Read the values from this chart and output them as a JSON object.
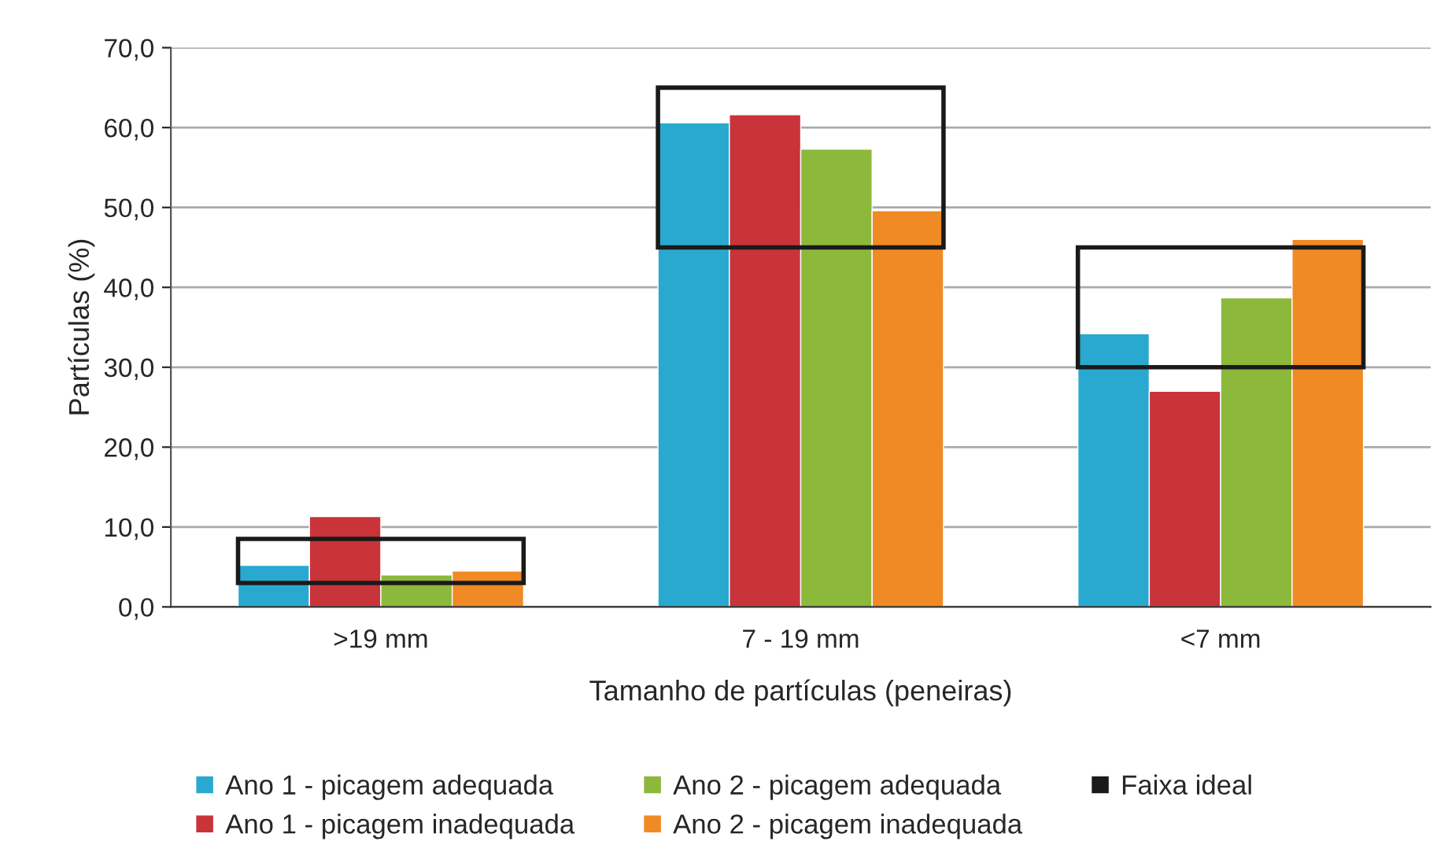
{
  "chart_data": {
    "type": "bar",
    "xlabel": "Tamanho de partículas (peneiras)",
    "ylabel": "Partículas (%)",
    "categories": [
      ">19 mm",
      "7 - 19 mm",
      "<7 mm"
    ],
    "series": [
      {
        "name": "Ano 1 - picagem adequada",
        "color": "#29a9cf",
        "values": [
          5.2,
          60.6,
          34.2
        ]
      },
      {
        "name": "Ano 1 - picagem inadequada",
        "color": "#c9333a",
        "values": [
          11.3,
          61.6,
          27.0
        ]
      },
      {
        "name": "Ano 2 - picagem adequada",
        "color": "#8cb83c",
        "values": [
          4.0,
          57.3,
          38.7
        ]
      },
      {
        "name": "Ano 2 - picagem inadequada",
        "color": "#f08a24",
        "values": [
          4.5,
          49.6,
          46.0
        ]
      },
      {
        "name": "Faixa ideal",
        "type": "bar",
        "color": "#1a1a1a",
        "base": [
          3.0,
          45.0,
          30.0
        ],
        "values": [
          5.5,
          20.0,
          15.0
        ]
      }
    ],
    "ylim": [
      0,
      70
    ],
    "yticks": [
      {
        "value": 0,
        "label": "0,0"
      },
      {
        "value": 10,
        "label": "10,0"
      },
      {
        "value": 20,
        "label": "20,0"
      },
      {
        "value": 30,
        "label": "30,0"
      },
      {
        "value": 40,
        "label": "40,0"
      },
      {
        "value": 50,
        "label": "50,0"
      },
      {
        "value": 60,
        "label": "60,0"
      },
      {
        "value": 70,
        "label": "70,0"
      }
    ],
    "grid": "y",
    "legend": "bottom"
  }
}
